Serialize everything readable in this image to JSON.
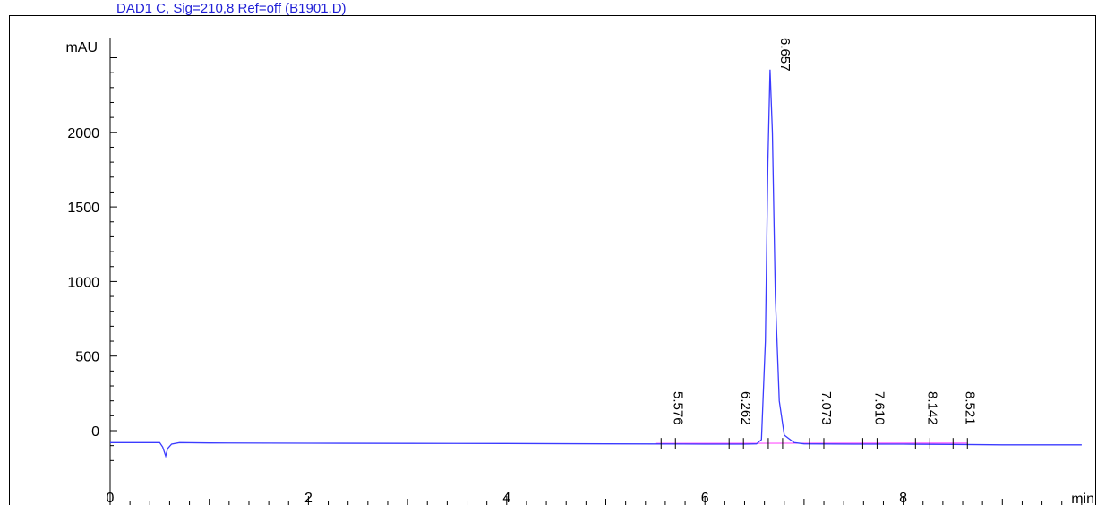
{
  "title": "DAD1 C, Sig=210,8 Ref=off (B1901.D)",
  "chart_data": {
    "type": "line",
    "title": "DAD1 C, Sig=210,8 Ref=off (B1901.D)",
    "ylabel": "mAU",
    "xlabel": "min",
    "xlim": [
      0,
      9.8
    ],
    "ylim": [
      -250,
      2600
    ],
    "x_ticks": [
      0,
      2,
      4,
      6,
      8
    ],
    "y_ticks": [
      0,
      500,
      1000,
      1500,
      2000
    ],
    "grid": false,
    "trace_color": "#3b3bff",
    "baseline_color": "#ff3bff",
    "baseline_level": -85,
    "series": [
      {
        "x": [
          0,
          0.5,
          0.53,
          0.56,
          0.58,
          0.62,
          0.7,
          1.0,
          2.0,
          3.0,
          4.0,
          5.0,
          5.5,
          6.0,
          6.4,
          6.52,
          6.57,
          6.61,
          6.635,
          6.657,
          6.68,
          6.71,
          6.75,
          6.8,
          6.9,
          7.0,
          7.5,
          8.0,
          8.5,
          9.0,
          9.8
        ],
        "y": [
          -80,
          -80,
          -110,
          -170,
          -120,
          -90,
          -80,
          -82,
          -84,
          -85,
          -86,
          -88,
          -89,
          -90,
          -90,
          -88,
          -60,
          600,
          1800,
          2420,
          2000,
          900,
          200,
          -30,
          -80,
          -88,
          -90,
          -90,
          -92,
          -95,
          -95
        ]
      }
    ],
    "peaks": [
      {
        "rt": "5.576",
        "x": 5.576
      },
      {
        "rt": "6.262",
        "x": 6.262
      },
      {
        "rt": "6.657",
        "x": 6.657
      },
      {
        "rt": "7.073",
        "x": 7.073
      },
      {
        "rt": "7.610",
        "x": 7.61
      },
      {
        "rt": "8.142",
        "x": 8.142
      },
      {
        "rt": "8.521",
        "x": 8.521
      }
    ]
  }
}
